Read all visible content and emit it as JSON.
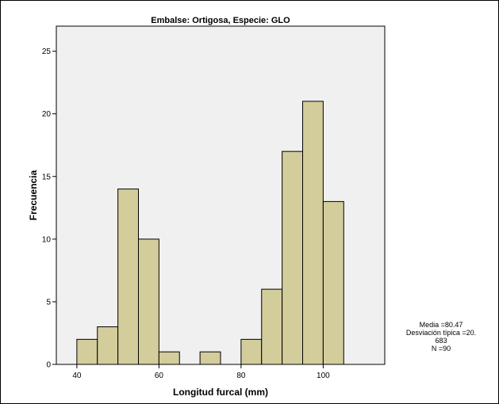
{
  "chart_data": {
    "type": "bar",
    "title": "Embalse: Ortigosa, Especie: GLO",
    "xlabel": "Longitud furcal (mm)",
    "ylabel": "Frecuencia",
    "xlim": [
      35,
      115
    ],
    "ylim": [
      0,
      27
    ],
    "x_ticks": [
      40,
      60,
      80,
      100
    ],
    "y_ticks": [
      0,
      5,
      10,
      15,
      20,
      25
    ],
    "bin_width": 5,
    "bins": [
      {
        "start": 40,
        "end": 45,
        "count": 2
      },
      {
        "start": 45,
        "end": 50,
        "count": 3
      },
      {
        "start": 50,
        "end": 55,
        "count": 14
      },
      {
        "start": 55,
        "end": 60,
        "count": 10
      },
      {
        "start": 60,
        "end": 65,
        "count": 1
      },
      {
        "start": 65,
        "end": 70,
        "count": 0
      },
      {
        "start": 70,
        "end": 75,
        "count": 1
      },
      {
        "start": 75,
        "end": 80,
        "count": 0
      },
      {
        "start": 80,
        "end": 85,
        "count": 2
      },
      {
        "start": 85,
        "end": 90,
        "count": 6
      },
      {
        "start": 90,
        "end": 95,
        "count": 17
      },
      {
        "start": 95,
        "end": 100,
        "count": 21
      },
      {
        "start": 100,
        "end": 105,
        "count": 13
      }
    ],
    "stats": {
      "lines": [
        "Media =80.47",
        "Desviación típica =20.",
        "683",
        "N =90"
      ]
    },
    "colors": {
      "bar_fill": "#d3cd9b",
      "plot_background": "#f0f0f0",
      "bar_stroke": "#000000"
    },
    "grid": false,
    "legend": "none"
  }
}
